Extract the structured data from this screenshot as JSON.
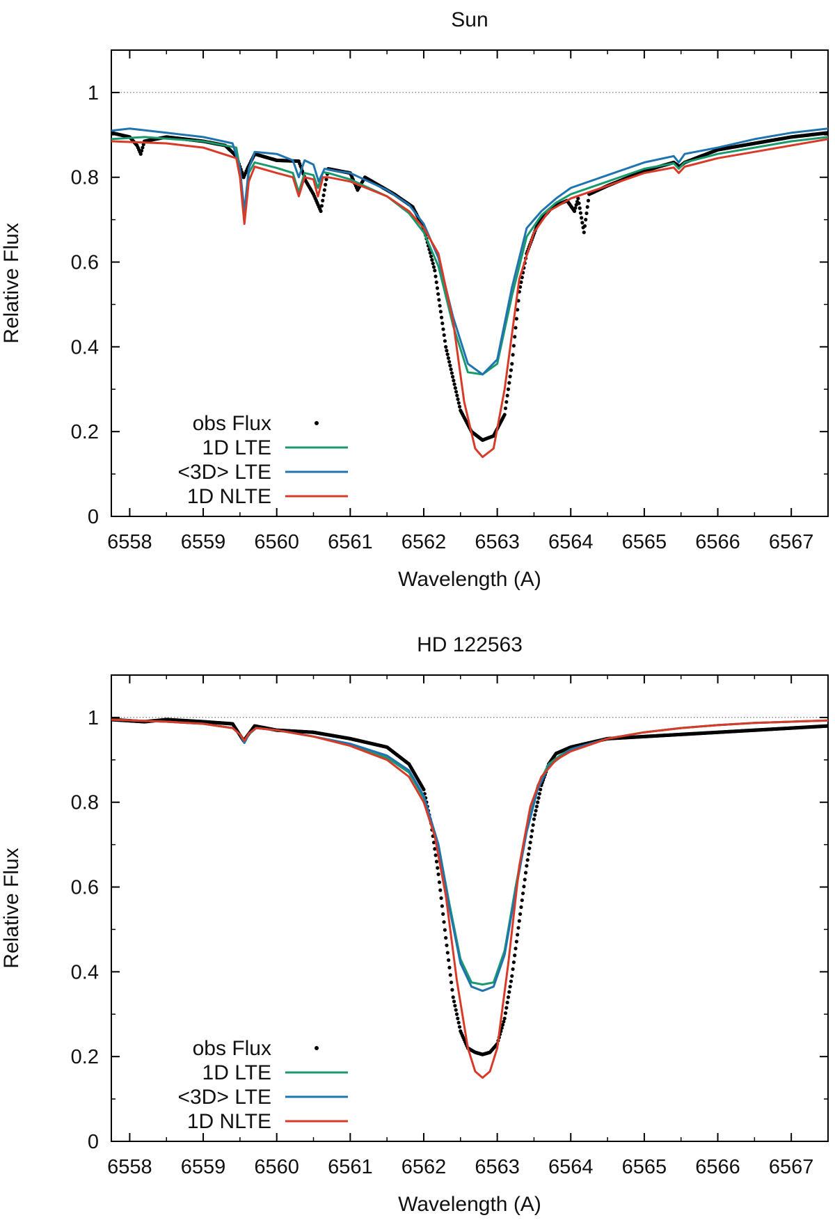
{
  "chart_data": [
    {
      "type": "line",
      "title": "Sun",
      "xlabel": "Wavelength (A)",
      "ylabel": "Relative Flux",
      "xlim": [
        6557.75,
        6567.5
      ],
      "ylim": [
        0,
        1.1
      ],
      "xticks": [
        "6558",
        "6559",
        "6560",
        "6561",
        "6562",
        "6563",
        "6564",
        "6565",
        "6566",
        "6567"
      ],
      "yticks": [
        "0",
        "0.2",
        "0.4",
        "0.6",
        "0.8",
        "1"
      ],
      "continuum": 1,
      "legend": {
        "position": "bottom-left",
        "entries": [
          "obs Flux",
          "1D LTE",
          "<3D> LTE",
          "1D NLTE"
        ]
      },
      "series": [
        {
          "name": "obs Flux",
          "style": "points",
          "color": "#000000",
          "x": [
            6557.75,
            6558.0,
            6558.1,
            6558.15,
            6558.2,
            6558.5,
            6559.0,
            6559.3,
            6559.45,
            6559.55,
            6559.6,
            6559.7,
            6560.0,
            6560.3,
            6560.4,
            6560.5,
            6560.6,
            6560.7,
            6561.0,
            6561.1,
            6561.2,
            6561.6,
            6561.85,
            6562.0,
            6562.15,
            6562.3,
            6562.5,
            6562.65,
            6562.8,
            6562.95,
            6563.1,
            6563.2,
            6563.3,
            6563.4,
            6563.55,
            6563.75,
            6563.95,
            6564.05,
            6564.1,
            6564.18,
            6564.25,
            6564.5,
            6565.0,
            6565.4,
            6565.48,
            6565.55,
            6566.0,
            6566.5,
            6567.0,
            6567.5
          ],
          "y": [
            0.905,
            0.895,
            0.875,
            0.855,
            0.885,
            0.895,
            0.885,
            0.875,
            0.85,
            0.8,
            0.82,
            0.855,
            0.84,
            0.838,
            0.79,
            0.76,
            0.72,
            0.82,
            0.81,
            0.77,
            0.8,
            0.76,
            0.73,
            0.68,
            0.58,
            0.4,
            0.25,
            0.2,
            0.18,
            0.19,
            0.24,
            0.36,
            0.53,
            0.62,
            0.69,
            0.73,
            0.745,
            0.72,
            0.75,
            0.67,
            0.76,
            0.78,
            0.815,
            0.835,
            0.825,
            0.835,
            0.865,
            0.88,
            0.895,
            0.905
          ]
        },
        {
          "name": "1D LTE",
          "style": "line",
          "color": "#1a9a6c",
          "x": [
            6557.75,
            6558.2,
            6559.0,
            6559.45,
            6559.5,
            6559.56,
            6559.62,
            6559.7,
            6560.0,
            6560.22,
            6560.3,
            6560.38,
            6560.5,
            6560.56,
            6560.63,
            6560.7,
            6561.0,
            6561.5,
            6561.8,
            6562.0,
            6562.2,
            6562.4,
            6562.6,
            6562.8,
            6563.0,
            6563.2,
            6563.4,
            6563.6,
            6563.8,
            6564.0,
            6564.5,
            6565.0,
            6565.4,
            6565.47,
            6565.55,
            6566.0,
            6566.5,
            6567.0,
            6567.5
          ],
          "y": [
            0.89,
            0.895,
            0.885,
            0.87,
            0.82,
            0.7,
            0.81,
            0.835,
            0.822,
            0.81,
            0.765,
            0.81,
            0.805,
            0.775,
            0.812,
            0.81,
            0.795,
            0.755,
            0.715,
            0.67,
            0.59,
            0.45,
            0.34,
            0.335,
            0.36,
            0.52,
            0.66,
            0.71,
            0.74,
            0.76,
            0.79,
            0.82,
            0.833,
            0.82,
            0.835,
            0.855,
            0.87,
            0.885,
            0.895
          ]
        },
        {
          "name": "<3D> LTE",
          "style": "line",
          "color": "#1f74b0",
          "x": [
            6557.75,
            6558.0,
            6558.5,
            6559.0,
            6559.4,
            6559.5,
            6559.56,
            6559.62,
            6559.7,
            6560.0,
            6560.22,
            6560.3,
            6560.38,
            6560.5,
            6560.57,
            6560.65,
            6560.8,
            6561.0,
            6561.5,
            6561.8,
            6562.0,
            6562.2,
            6562.4,
            6562.6,
            6562.8,
            6563.0,
            6563.2,
            6563.4,
            6563.6,
            6563.8,
            6564.0,
            6564.5,
            6565.0,
            6565.4,
            6565.47,
            6565.55,
            6566.0,
            6566.5,
            6567.0,
            6567.5
          ],
          "y": [
            0.91,
            0.915,
            0.905,
            0.895,
            0.88,
            0.82,
            0.72,
            0.82,
            0.86,
            0.855,
            0.84,
            0.8,
            0.84,
            0.83,
            0.79,
            0.82,
            0.815,
            0.81,
            0.77,
            0.735,
            0.69,
            0.61,
            0.47,
            0.36,
            0.335,
            0.37,
            0.54,
            0.68,
            0.72,
            0.75,
            0.775,
            0.805,
            0.835,
            0.85,
            0.835,
            0.855,
            0.87,
            0.89,
            0.905,
            0.915
          ]
        },
        {
          "name": "1D NLTE",
          "style": "line",
          "color": "#d93a28",
          "x": [
            6557.75,
            6558.5,
            6559.0,
            6559.45,
            6559.5,
            6559.56,
            6559.62,
            6559.7,
            6560.0,
            6560.22,
            6560.3,
            6560.38,
            6560.5,
            6560.56,
            6560.63,
            6560.7,
            6561.0,
            6561.5,
            6561.8,
            6562.0,
            6562.2,
            6562.4,
            6562.55,
            6562.7,
            6562.8,
            6562.95,
            6563.1,
            6563.3,
            6563.5,
            6563.7,
            6564.0,
            6564.5,
            6565.0,
            6565.4,
            6565.47,
            6565.55,
            6566.0,
            6566.5,
            6567.0,
            6567.5
          ],
          "y": [
            0.885,
            0.88,
            0.87,
            0.845,
            0.8,
            0.69,
            0.79,
            0.825,
            0.81,
            0.8,
            0.755,
            0.8,
            0.795,
            0.755,
            0.8,
            0.8,
            0.79,
            0.755,
            0.72,
            0.68,
            0.62,
            0.46,
            0.27,
            0.16,
            0.14,
            0.16,
            0.3,
            0.56,
            0.67,
            0.72,
            0.75,
            0.78,
            0.81,
            0.823,
            0.81,
            0.825,
            0.845,
            0.86,
            0.875,
            0.89
          ]
        }
      ]
    },
    {
      "type": "line",
      "title": "HD 122563",
      "xlabel": "Wavelength (A)",
      "ylabel": "Relative Flux",
      "xlim": [
        6557.75,
        6567.5
      ],
      "ylim": [
        0,
        1.1
      ],
      "xticks": [
        "6558",
        "6559",
        "6560",
        "6561",
        "6562",
        "6563",
        "6564",
        "6565",
        "6566",
        "6567"
      ],
      "yticks": [
        "0",
        "0.2",
        "0.4",
        "0.6",
        "0.8",
        "1"
      ],
      "continuum": 1,
      "legend": {
        "position": "bottom-left",
        "entries": [
          "obs Flux",
          "1D LTE",
          "<3D> LTE",
          "1D NLTE"
        ]
      },
      "series": [
        {
          "name": "obs Flux",
          "style": "points",
          "color": "#000000",
          "x": [
            6557.75,
            6558.2,
            6558.5,
            6559.0,
            6559.4,
            6559.55,
            6559.7,
            6560.0,
            6560.5,
            6561.0,
            6561.5,
            6561.8,
            6562.0,
            6562.1,
            6562.2,
            6562.3,
            6562.4,
            6562.5,
            6562.6,
            6562.7,
            6562.8,
            6562.9,
            6563.0,
            6563.1,
            6563.2,
            6563.3,
            6563.4,
            6563.5,
            6563.6,
            6563.7,
            6563.8,
            6564.0,
            6564.5,
            6565.0,
            6565.5,
            6566.0,
            6566.5,
            6567.0,
            6567.5
          ],
          "y": [
            0.995,
            0.99,
            0.995,
            0.99,
            0.985,
            0.945,
            0.98,
            0.97,
            0.965,
            0.95,
            0.93,
            0.89,
            0.83,
            0.75,
            0.63,
            0.48,
            0.34,
            0.26,
            0.22,
            0.21,
            0.205,
            0.21,
            0.23,
            0.29,
            0.39,
            0.52,
            0.65,
            0.76,
            0.84,
            0.89,
            0.915,
            0.93,
            0.95,
            0.955,
            0.96,
            0.965,
            0.97,
            0.975,
            0.98
          ]
        },
        {
          "name": "1D LTE",
          "style": "line",
          "color": "#1a9a6c",
          "x": [
            6557.75,
            6558.5,
            6559.0,
            6559.4,
            6559.5,
            6559.56,
            6559.62,
            6559.72,
            6560.0,
            6560.5,
            6561.0,
            6561.5,
            6561.8,
            6562.0,
            6562.2,
            6562.35,
            6562.5,
            6562.65,
            6562.8,
            6562.95,
            6563.1,
            6563.25,
            6563.4,
            6563.55,
            6563.7,
            6563.85,
            6564.0,
            6564.5,
            6565.0,
            6565.5,
            6566.0,
            6566.5,
            6567.0,
            6567.5
          ],
          "y": [
            0.995,
            0.99,
            0.985,
            0.975,
            0.96,
            0.942,
            0.96,
            0.975,
            0.97,
            0.955,
            0.935,
            0.905,
            0.87,
            0.81,
            0.7,
            0.56,
            0.43,
            0.375,
            0.37,
            0.375,
            0.45,
            0.6,
            0.74,
            0.84,
            0.89,
            0.91,
            0.925,
            0.95,
            0.965,
            0.975,
            0.982,
            0.987,
            0.99,
            0.993
          ]
        },
        {
          "name": "<3D> LTE",
          "style": "line",
          "color": "#1f74b0",
          "x": [
            6557.75,
            6558.5,
            6559.0,
            6559.4,
            6559.5,
            6559.56,
            6559.62,
            6559.72,
            6560.0,
            6560.5,
            6561.0,
            6561.5,
            6561.8,
            6562.0,
            6562.2,
            6562.35,
            6562.5,
            6562.65,
            6562.8,
            6562.95,
            6563.1,
            6563.25,
            6563.4,
            6563.55,
            6563.7,
            6563.85,
            6564.0,
            6564.5,
            6565.0,
            6565.5,
            6566.0,
            6566.5,
            6567.0,
            6567.5
          ],
          "y": [
            0.995,
            0.99,
            0.985,
            0.975,
            0.96,
            0.94,
            0.96,
            0.975,
            0.97,
            0.955,
            0.938,
            0.91,
            0.875,
            0.815,
            0.7,
            0.55,
            0.42,
            0.365,
            0.355,
            0.365,
            0.44,
            0.59,
            0.73,
            0.83,
            0.885,
            0.905,
            0.925,
            0.95,
            0.965,
            0.975,
            0.982,
            0.987,
            0.99,
            0.993
          ]
        },
        {
          "name": "1D NLTE",
          "style": "line",
          "color": "#d93a28",
          "x": [
            6557.75,
            6558.5,
            6559.0,
            6559.4,
            6559.5,
            6559.56,
            6559.62,
            6559.72,
            6560.0,
            6560.5,
            6561.0,
            6561.5,
            6561.8,
            6562.0,
            6562.15,
            6562.3,
            6562.45,
            6562.6,
            6562.7,
            6562.8,
            6562.9,
            6563.0,
            6563.15,
            6563.3,
            6563.45,
            6563.6,
            6563.8,
            6564.0,
            6564.5,
            6565.0,
            6565.5,
            6566.0,
            6566.5,
            6567.0,
            6567.5
          ],
          "y": [
            0.995,
            0.99,
            0.985,
            0.975,
            0.96,
            0.945,
            0.962,
            0.975,
            0.97,
            0.955,
            0.933,
            0.9,
            0.86,
            0.8,
            0.72,
            0.58,
            0.38,
            0.22,
            0.165,
            0.15,
            0.165,
            0.22,
            0.42,
            0.65,
            0.79,
            0.86,
            0.9,
            0.92,
            0.95,
            0.965,
            0.975,
            0.982,
            0.987,
            0.99,
            0.993
          ]
        }
      ]
    }
  ]
}
